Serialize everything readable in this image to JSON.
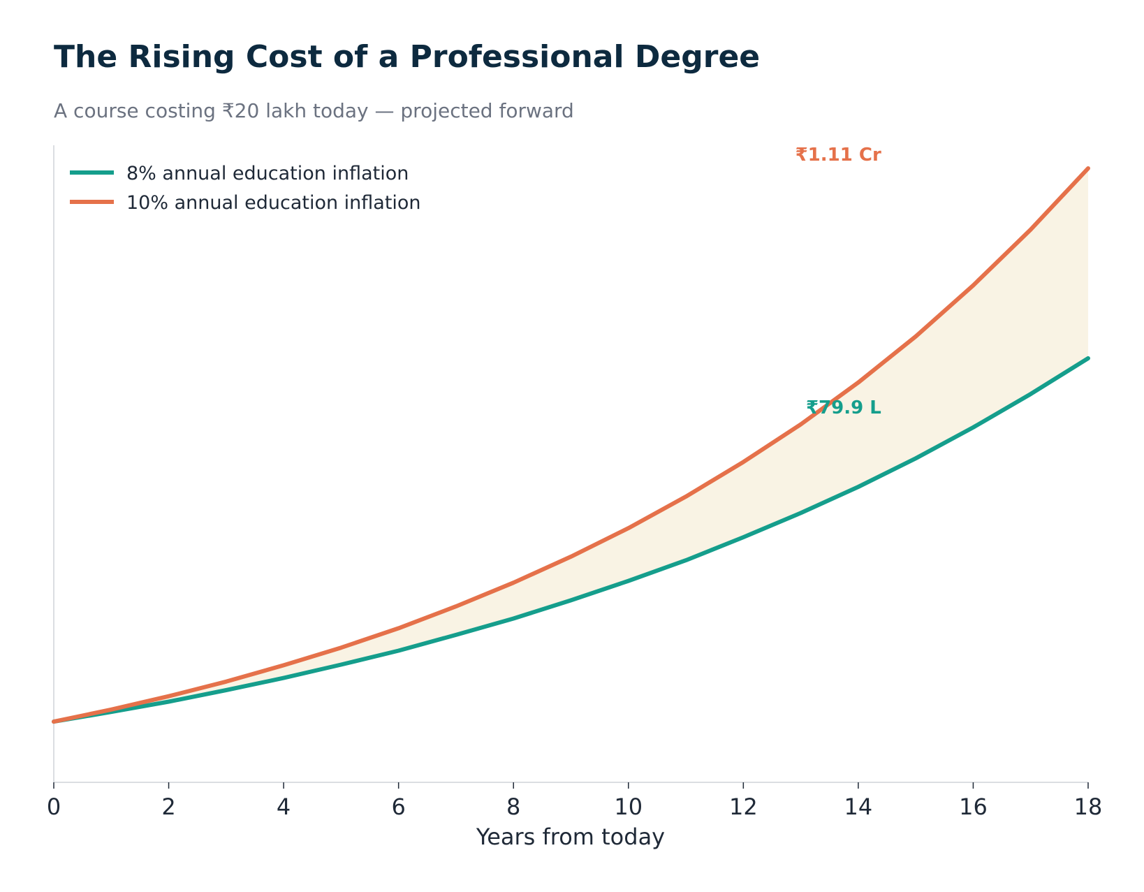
{
  "title": "The Rising Cost of a Professional Degree",
  "subtitle": "A course costing ₹20 lakh today — projected forward",
  "colors": {
    "series_8": "#159e8c",
    "series_10": "#e5714a",
    "band_fill": "#f9f3e4",
    "axis": "#cfd4d9",
    "title": "#0d2a3f",
    "subtitle": "#6b7280"
  },
  "chart_data": {
    "type": "line",
    "xlabel": "Years from today",
    "ylabel": "",
    "xlim": [
      0,
      18
    ],
    "ylim": [
      10,
      115
    ],
    "xticks": [
      0,
      2,
      4,
      6,
      8,
      10,
      12,
      14,
      16,
      18
    ],
    "y_ticks_shown": false,
    "grid": false,
    "legend_position": "top-left",
    "fill_between_series": true,
    "x": [
      0,
      1,
      2,
      3,
      4,
      5,
      6,
      7,
      8,
      9,
      10,
      11,
      12,
      13,
      14,
      15,
      16,
      17,
      18
    ],
    "series": [
      {
        "name": "8% annual education inflation",
        "color_key": "series_8",
        "values": [
          20.0,
          21.6,
          23.3,
          25.2,
          27.2,
          29.4,
          31.7,
          34.3,
          37.0,
          40.0,
          43.2,
          46.6,
          50.4,
          54.4,
          58.7,
          63.4,
          68.5,
          74.0,
          79.9
        ],
        "end_label": "₹79.9 L"
      },
      {
        "name": "10% annual education inflation",
        "color_key": "series_10",
        "values": [
          20.0,
          22.0,
          24.2,
          26.6,
          29.3,
          32.2,
          35.4,
          39.0,
          42.9,
          47.2,
          51.9,
          57.1,
          62.8,
          69.0,
          75.9,
          83.5,
          91.9,
          101.1,
          111.2
        ],
        "end_label": "₹1.11 Cr"
      }
    ]
  }
}
